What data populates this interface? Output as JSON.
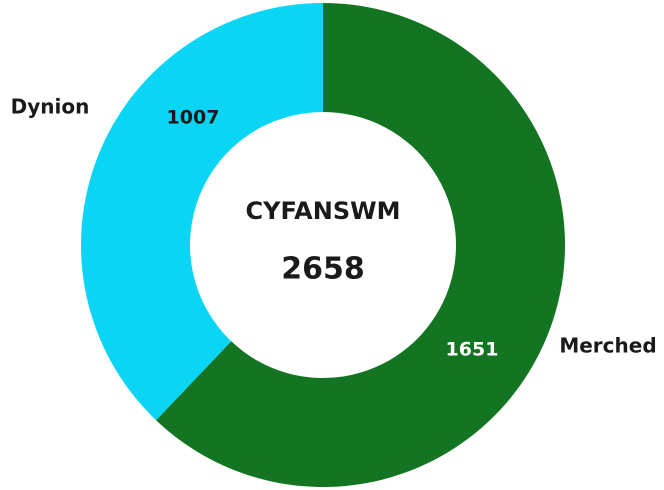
{
  "chart_data": {
    "type": "donut",
    "center_label": "CYFANSWM",
    "total": 2658,
    "categories": [
      "Merched",
      "Dynion"
    ],
    "values": [
      1651,
      1007
    ],
    "colors": [
      "#137522",
      "#0bd5f5"
    ],
    "value_label_colors": [
      "#ffffff",
      "#1a1a1a"
    ]
  }
}
